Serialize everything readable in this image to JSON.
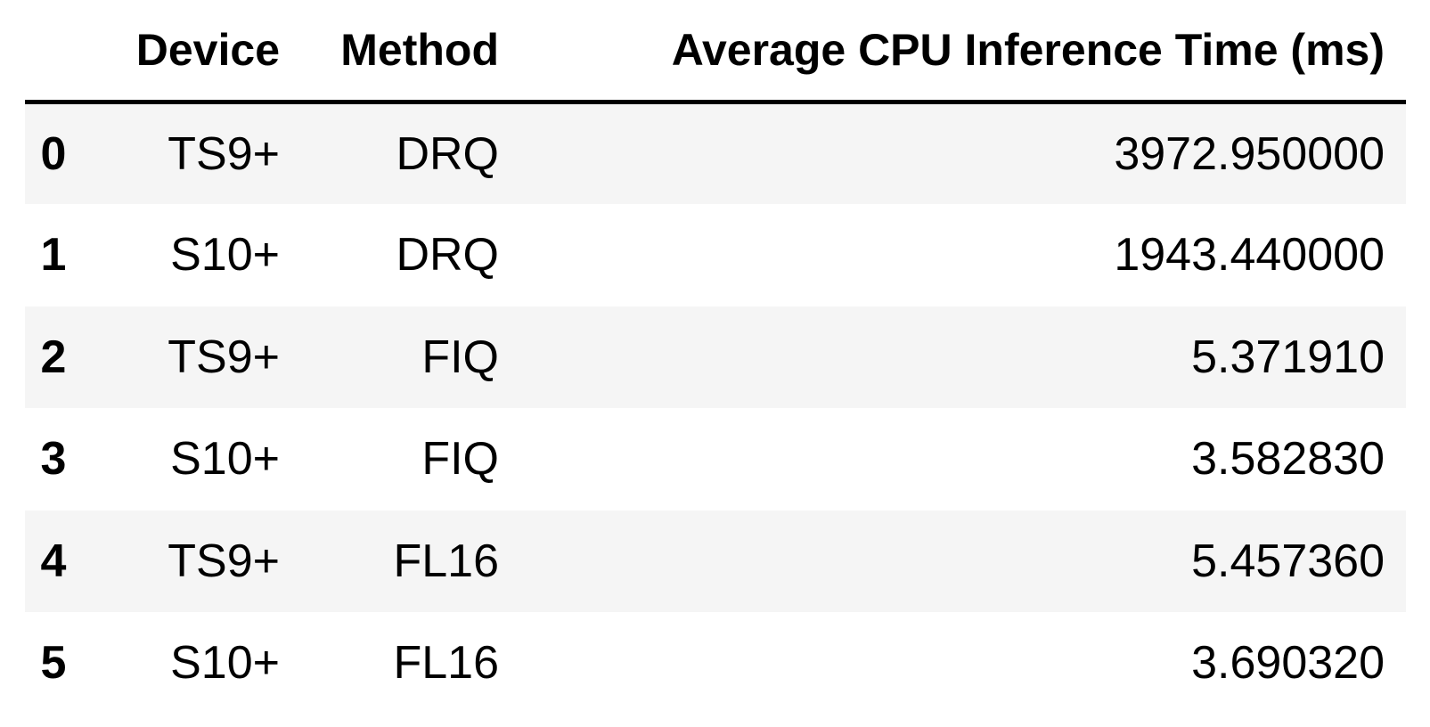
{
  "chart_data": {
    "type": "table",
    "columns": [
      "",
      "Device",
      "Method",
      "Average CPU Inference Time (ms)"
    ],
    "rows": [
      {
        "index": "0",
        "device": "TS9+",
        "method": "DRQ",
        "avg_cpu_ms": "3972.950000"
      },
      {
        "index": "1",
        "device": "S10+",
        "method": "DRQ",
        "avg_cpu_ms": "1943.440000"
      },
      {
        "index": "2",
        "device": "TS9+",
        "method": "FIQ",
        "avg_cpu_ms": "5.371910"
      },
      {
        "index": "3",
        "device": "S10+",
        "method": "FIQ",
        "avg_cpu_ms": "3.582830"
      },
      {
        "index": "4",
        "device": "TS9+",
        "method": "FL16",
        "avg_cpu_ms": "5.457360"
      },
      {
        "index": "5",
        "device": "S10+",
        "method": "FL16",
        "avg_cpu_ms": "3.690320"
      }
    ]
  },
  "colors": {
    "stripe": "#f5f5f5",
    "background": "#ffffff",
    "header_rule": "#000000",
    "text": "#000000"
  }
}
